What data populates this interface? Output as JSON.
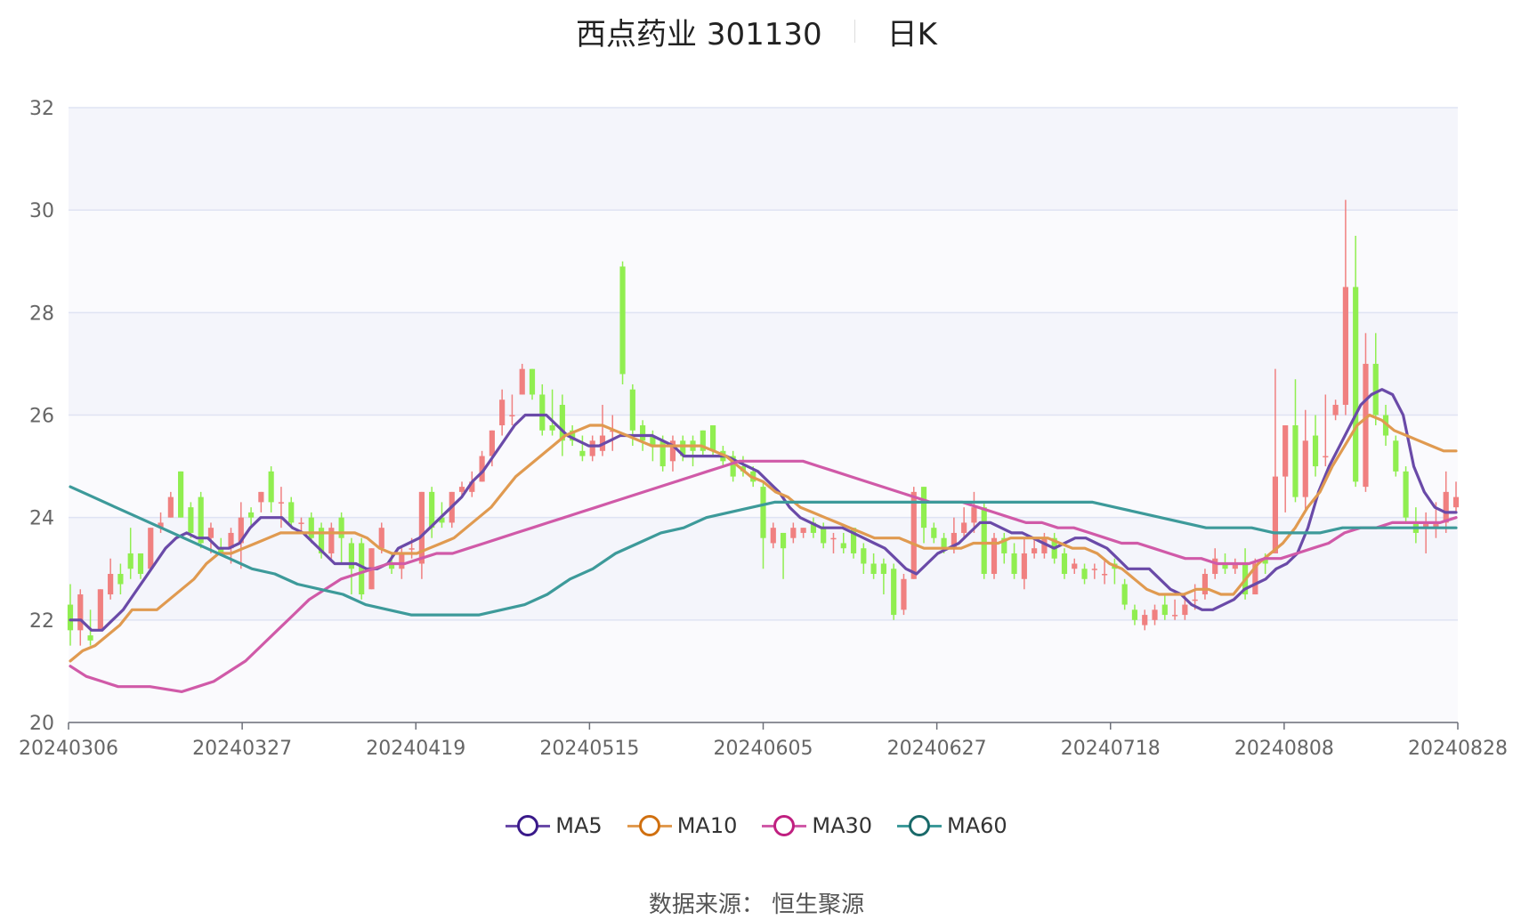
{
  "header": {
    "stock": "西点药业 301130",
    "period": "日K"
  },
  "footer": {
    "source": "数据来源： 恒生聚源"
  },
  "chart_data": {
    "type": "candlestick",
    "title": "西点药业 301130",
    "ylim": [
      20,
      32
    ],
    "y_ticks": [
      20,
      22,
      24,
      26,
      28,
      30,
      32
    ],
    "x_ticks": [
      "20240306",
      "20240327",
      "20240419",
      "20240515",
      "20240605",
      "20240627",
      "20240718",
      "20240808",
      "20240828"
    ],
    "up_color": "#f08080",
    "down_color": "#90ee50",
    "grid": true,
    "legend_position": "bottom",
    "candles": [
      [
        22.3,
        21.8,
        22.7,
        21.5
      ],
      [
        21.8,
        22.5,
        22.6,
        21.5
      ],
      [
        21.7,
        21.6,
        22.2,
        21.5
      ],
      [
        21.8,
        22.6,
        22.6,
        21.8
      ],
      [
        22.5,
        22.9,
        23.2,
        22.4
      ],
      [
        22.9,
        22.7,
        23.1,
        22.5
      ],
      [
        23.3,
        23.0,
        23.8,
        22.8
      ],
      [
        23.3,
        22.9,
        23.3,
        22.8
      ],
      [
        23.0,
        23.8,
        23.8,
        23.0
      ],
      [
        23.8,
        23.9,
        24.1,
        23.7
      ],
      [
        24.0,
        24.4,
        24.5,
        24.0
      ],
      [
        24.9,
        24.0,
        24.9,
        24.0
      ],
      [
        24.2,
        23.7,
        24.3,
        23.6
      ],
      [
        24.4,
        23.5,
        24.5,
        23.4
      ],
      [
        23.6,
        23.8,
        23.9,
        23.3
      ],
      [
        23.4,
        23.3,
        23.6,
        23.3
      ],
      [
        23.4,
        23.7,
        23.8,
        23.1
      ],
      [
        23.5,
        24.0,
        24.3,
        23.0
      ],
      [
        24.1,
        24.0,
        24.2,
        23.8
      ],
      [
        24.3,
        24.5,
        24.5,
        24.1
      ],
      [
        24.9,
        24.3,
        25.0,
        24.1
      ],
      [
        24.3,
        24.3,
        24.6,
        23.8
      ],
      [
        24.3,
        23.9,
        24.4,
        23.8
      ],
      [
        23.9,
        23.9,
        24.0,
        23.7
      ],
      [
        24.0,
        23.6,
        24.1,
        23.5
      ],
      [
        23.8,
        23.3,
        23.9,
        23.2
      ],
      [
        23.3,
        23.8,
        23.9,
        23.2
      ],
      [
        24.0,
        23.6,
        24.1,
        23.1
      ],
      [
        23.5,
        23.0,
        23.6,
        22.5
      ],
      [
        23.5,
        22.5,
        23.6,
        22.4
      ],
      [
        22.6,
        23.4,
        23.4,
        22.6
      ],
      [
        23.4,
        23.8,
        23.9,
        23.3
      ],
      [
        23.1,
        23.0,
        23.3,
        22.9
      ],
      [
        23.0,
        23.3,
        23.4,
        22.8
      ],
      [
        23.4,
        23.4,
        23.6,
        23.2
      ],
      [
        23.1,
        24.5,
        24.5,
        22.8
      ],
      [
        24.5,
        23.8,
        24.6,
        23.6
      ],
      [
        24.0,
        23.9,
        24.3,
        23.8
      ],
      [
        23.9,
        24.5,
        24.5,
        23.8
      ],
      [
        24.5,
        24.6,
        24.7,
        24.4
      ],
      [
        24.5,
        24.7,
        24.9,
        24.4
      ],
      [
        24.7,
        25.2,
        25.3,
        24.7
      ],
      [
        25.2,
        25.7,
        25.7,
        25.0
      ],
      [
        25.8,
        26.3,
        26.5,
        25.6
      ],
      [
        26.0,
        26.0,
        26.4,
        25.8
      ],
      [
        26.4,
        26.9,
        27.0,
        26.4
      ],
      [
        26.9,
        26.4,
        26.9,
        26.3
      ],
      [
        26.4,
        25.7,
        26.6,
        25.6
      ],
      [
        25.8,
        25.7,
        26.5,
        25.6
      ],
      [
        26.2,
        25.5,
        26.4,
        25.2
      ],
      [
        25.7,
        25.5,
        25.8,
        25.4
      ],
      [
        25.3,
        25.2,
        25.6,
        25.1
      ],
      [
        25.2,
        25.5,
        25.6,
        25.1
      ],
      [
        25.3,
        25.6,
        26.2,
        25.2
      ],
      [
        25.7,
        25.7,
        26.0,
        25.3
      ],
      [
        28.9,
        26.8,
        29.0,
        26.6
      ],
      [
        26.5,
        25.7,
        26.6,
        25.4
      ],
      [
        25.8,
        25.5,
        25.9,
        25.3
      ],
      [
        25.6,
        25.4,
        25.7,
        25.1
      ],
      [
        25.5,
        25.0,
        25.6,
        24.9
      ],
      [
        25.1,
        25.5,
        25.6,
        24.9
      ],
      [
        25.5,
        25.2,
        25.6,
        25.1
      ],
      [
        25.5,
        25.3,
        25.6,
        25.0
      ],
      [
        25.7,
        25.3,
        25.7,
        25.2
      ],
      [
        25.8,
        25.3,
        25.8,
        25.2
      ],
      [
        25.3,
        25.1,
        25.4,
        25.0
      ],
      [
        25.2,
        24.8,
        25.3,
        24.7
      ],
      [
        25.0,
        24.9,
        25.2,
        24.8
      ],
      [
        24.9,
        24.7,
        25.0,
        24.6
      ],
      [
        24.6,
        23.6,
        24.7,
        23.0
      ],
      [
        23.5,
        23.8,
        23.9,
        23.4
      ],
      [
        23.7,
        23.4,
        23.7,
        22.8
      ],
      [
        23.6,
        23.8,
        23.9,
        23.5
      ],
      [
        23.7,
        23.8,
        23.8,
        23.6
      ],
      [
        23.9,
        23.7,
        24.0,
        23.6
      ],
      [
        23.8,
        23.5,
        23.9,
        23.4
      ],
      [
        23.6,
        23.6,
        23.7,
        23.3
      ],
      [
        23.5,
        23.4,
        23.7,
        23.3
      ],
      [
        23.8,
        23.3,
        23.8,
        23.2
      ],
      [
        23.4,
        23.1,
        23.5,
        22.9
      ],
      [
        23.1,
        22.9,
        23.3,
        22.8
      ],
      [
        23.1,
        22.9,
        23.2,
        22.5
      ],
      [
        23.0,
        22.1,
        23.1,
        22.0
      ],
      [
        22.2,
        22.8,
        22.9,
        22.1
      ],
      [
        22.8,
        24.5,
        24.6,
        22.8
      ],
      [
        24.6,
        23.8,
        24.6,
        23.5
      ],
      [
        23.8,
        23.6,
        23.9,
        23.5
      ],
      [
        23.6,
        23.4,
        23.7,
        23.3
      ],
      [
        23.4,
        23.7,
        24.0,
        23.3
      ],
      [
        23.7,
        23.9,
        24.2,
        23.6
      ],
      [
        23.9,
        24.2,
        24.5,
        23.7
      ],
      [
        24.2,
        22.9,
        24.3,
        22.8
      ],
      [
        22.9,
        23.6,
        23.7,
        22.8
      ],
      [
        23.6,
        23.3,
        23.7,
        23.1
      ],
      [
        23.3,
        22.9,
        23.5,
        22.8
      ],
      [
        22.8,
        23.3,
        23.6,
        22.6
      ],
      [
        23.3,
        23.4,
        23.6,
        23.2
      ],
      [
        23.3,
        23.6,
        23.7,
        23.2
      ],
      [
        23.6,
        23.2,
        23.7,
        23.1
      ],
      [
        23.3,
        22.9,
        23.4,
        22.8
      ],
      [
        23.0,
        23.1,
        23.2,
        22.9
      ],
      [
        23.0,
        22.8,
        23.1,
        22.7
      ],
      [
        23.0,
        23.0,
        23.1,
        22.8
      ],
      [
        22.9,
        22.9,
        23.2,
        22.7
      ],
      [
        23.1,
        23.0,
        23.2,
        22.7
      ],
      [
        22.7,
        22.3,
        22.8,
        22.2
      ],
      [
        22.2,
        22.0,
        22.3,
        21.9
      ],
      [
        21.9,
        22.1,
        22.2,
        21.8
      ],
      [
        22.0,
        22.2,
        22.3,
        21.9
      ],
      [
        22.3,
        22.1,
        22.5,
        22.0
      ],
      [
        22.1,
        22.1,
        22.4,
        22.0
      ],
      [
        22.1,
        22.3,
        22.5,
        22.0
      ],
      [
        22.4,
        22.4,
        22.7,
        22.2
      ],
      [
        22.5,
        22.9,
        23.0,
        22.4
      ],
      [
        22.9,
        23.2,
        23.4,
        22.8
      ],
      [
        23.1,
        23.0,
        23.3,
        22.9
      ],
      [
        23.0,
        23.1,
        23.2,
        22.9
      ],
      [
        23.1,
        22.5,
        23.4,
        22.4
      ],
      [
        22.5,
        23.1,
        23.2,
        22.5
      ],
      [
        23.2,
        23.1,
        23.3,
        22.9
      ],
      [
        23.3,
        24.8,
        26.9,
        23.4
      ],
      [
        24.8,
        25.8,
        25.8,
        24.1
      ],
      [
        25.8,
        24.4,
        26.7,
        24.3
      ],
      [
        24.4,
        25.5,
        26.1,
        24.1
      ],
      [
        25.6,
        25.0,
        26.0,
        24.8
      ],
      [
        25.2,
        25.2,
        26.4,
        25.0
      ],
      [
        26.0,
        26.2,
        26.3,
        25.9
      ],
      [
        26.2,
        28.5,
        30.2,
        26.0
      ],
      [
        28.5,
        24.7,
        29.5,
        24.6
      ],
      [
        24.6,
        27.0,
        27.6,
        24.5
      ],
      [
        27.0,
        26.0,
        27.6,
        25.8
      ],
      [
        26.0,
        25.6,
        26.2,
        25.4
      ],
      [
        25.5,
        24.9,
        25.6,
        24.8
      ],
      [
        24.9,
        24.0,
        25.0,
        23.9
      ],
      [
        23.9,
        23.7,
        24.2,
        23.5
      ],
      [
        23.8,
        23.9,
        24.1,
        23.3
      ],
      [
        23.8,
        23.9,
        24.3,
        23.6
      ],
      [
        23.9,
        24.5,
        24.9,
        23.7
      ],
      [
        24.2,
        24.4,
        24.7,
        24.1
      ]
    ],
    "series": [
      {
        "name": "MA5",
        "color": "#6a4aa8",
        "key": "ma5",
        "values": [
          22.0,
          22.0,
          21.8,
          21.8,
          22.0,
          22.2,
          22.5,
          22.8,
          23.1,
          23.4,
          23.6,
          23.7,
          23.6,
          23.6,
          23.4,
          23.4,
          23.5,
          23.8,
          24.0,
          24.0,
          24.0,
          23.8,
          23.7,
          23.5,
          23.3,
          23.1,
          23.1,
          23.1,
          23.0,
          23.0,
          23.1,
          23.4,
          23.5,
          23.6,
          23.8,
          24.0,
          24.2,
          24.4,
          24.7,
          24.9,
          25.2,
          25.5,
          25.8,
          26.0,
          26.0,
          26.0,
          25.8,
          25.6,
          25.5,
          25.4,
          25.4,
          25.5,
          25.6,
          25.6,
          25.6,
          25.6,
          25.5,
          25.4,
          25.2,
          25.2,
          25.2,
          25.2,
          25.2,
          25.1,
          25.0,
          24.9,
          24.7,
          24.5,
          24.2,
          24.0,
          23.9,
          23.8,
          23.8,
          23.8,
          23.7,
          23.6,
          23.5,
          23.4,
          23.2,
          23.0,
          22.9,
          23.1,
          23.3,
          23.4,
          23.5,
          23.7,
          23.9,
          23.9,
          23.8,
          23.7,
          23.7,
          23.6,
          23.5,
          23.4,
          23.5,
          23.6,
          23.6,
          23.5,
          23.4,
          23.2,
          23.0,
          23.0,
          23.0,
          22.8,
          22.6,
          22.5,
          22.3,
          22.2,
          22.2,
          22.3,
          22.4,
          22.6,
          22.7,
          22.8,
          23.0,
          23.1,
          23.3,
          23.8,
          24.5,
          25.0,
          25.4,
          25.8,
          26.2,
          26.4,
          26.5,
          26.4,
          26.0,
          25.0,
          24.5,
          24.2,
          24.1,
          24.1
        ]
      },
      {
        "name": "MA10",
        "color": "#e09a50",
        "key": "ma10",
        "values": [
          21.2,
          21.4,
          21.5,
          21.7,
          21.9,
          22.2,
          22.2,
          22.2,
          22.4,
          22.6,
          22.8,
          23.1,
          23.3,
          23.3,
          23.4,
          23.5,
          23.6,
          23.7,
          23.7,
          23.7,
          23.7,
          23.7,
          23.7,
          23.7,
          23.6,
          23.4,
          23.3,
          23.3,
          23.3,
          23.4,
          23.5,
          23.6,
          23.8,
          24.0,
          24.2,
          24.5,
          24.8,
          25.0,
          25.2,
          25.4,
          25.6,
          25.7,
          25.8,
          25.8,
          25.7,
          25.6,
          25.5,
          25.4,
          25.4,
          25.4,
          25.4,
          25.4,
          25.3,
          25.2,
          25.0,
          24.8,
          24.7,
          24.5,
          24.4,
          24.2,
          24.1,
          24.0,
          23.9,
          23.8,
          23.7,
          23.6,
          23.6,
          23.6,
          23.5,
          23.4,
          23.4,
          23.4,
          23.4,
          23.5,
          23.5,
          23.5,
          23.6,
          23.6,
          23.6,
          23.6,
          23.5,
          23.4,
          23.4,
          23.3,
          23.1,
          23.0,
          22.8,
          22.6,
          22.5,
          22.5,
          22.5,
          22.6,
          22.6,
          22.5,
          22.5,
          22.8,
          23.1,
          23.3,
          23.5,
          23.8,
          24.2,
          24.5,
          25.0,
          25.4,
          25.8,
          26.0,
          25.9,
          25.7,
          25.6,
          25.5,
          25.4,
          25.3,
          25.3
        ]
      },
      {
        "name": "MA30",
        "color": "#d05aa8",
        "key": "ma30",
        "values": [
          21.1,
          20.9,
          20.8,
          20.7,
          20.7,
          20.7,
          20.65,
          20.6,
          20.7,
          20.8,
          21.0,
          21.2,
          21.5,
          21.8,
          22.1,
          22.4,
          22.6,
          22.8,
          22.9,
          23.0,
          23.1,
          23.1,
          23.2,
          23.3,
          23.3,
          23.4,
          23.5,
          23.6,
          23.7,
          23.8,
          23.9,
          24.0,
          24.1,
          24.2,
          24.3,
          24.4,
          24.5,
          24.6,
          24.7,
          24.8,
          24.9,
          25.0,
          25.1,
          25.1,
          25.1,
          25.1,
          25.1,
          25.0,
          24.9,
          24.8,
          24.7,
          24.6,
          24.5,
          24.4,
          24.3,
          24.3,
          24.3,
          24.2,
          24.1,
          24.0,
          23.9,
          23.9,
          23.8,
          23.8,
          23.7,
          23.6,
          23.5,
          23.5,
          23.4,
          23.3,
          23.2,
          23.2,
          23.1,
          23.1,
          23.1,
          23.2,
          23.2,
          23.3,
          23.4,
          23.5,
          23.7,
          23.8,
          23.8,
          23.9,
          23.9,
          23.9,
          23.9,
          24.0
        ]
      },
      {
        "name": "MA60",
        "color": "#3d9a9a",
        "key": "ma60",
        "values": [
          24.6,
          24.4,
          24.2,
          24.0,
          23.8,
          23.6,
          23.4,
          23.2,
          23.0,
          22.9,
          22.7,
          22.6,
          22.5,
          22.3,
          22.2,
          22.1,
          22.1,
          22.1,
          22.1,
          22.2,
          22.3,
          22.5,
          22.8,
          23.0,
          23.3,
          23.5,
          23.7,
          23.8,
          24.0,
          24.1,
          24.2,
          24.3,
          24.3,
          24.3,
          24.3,
          24.3,
          24.3,
          24.3,
          24.3,
          24.3,
          24.3,
          24.3,
          24.3,
          24.3,
          24.3,
          24.3,
          24.2,
          24.1,
          24.0,
          23.9,
          23.8,
          23.8,
          23.8,
          23.7,
          23.7,
          23.7,
          23.8,
          23.8,
          23.8,
          23.8,
          23.8,
          23.8
        ]
      }
    ]
  }
}
